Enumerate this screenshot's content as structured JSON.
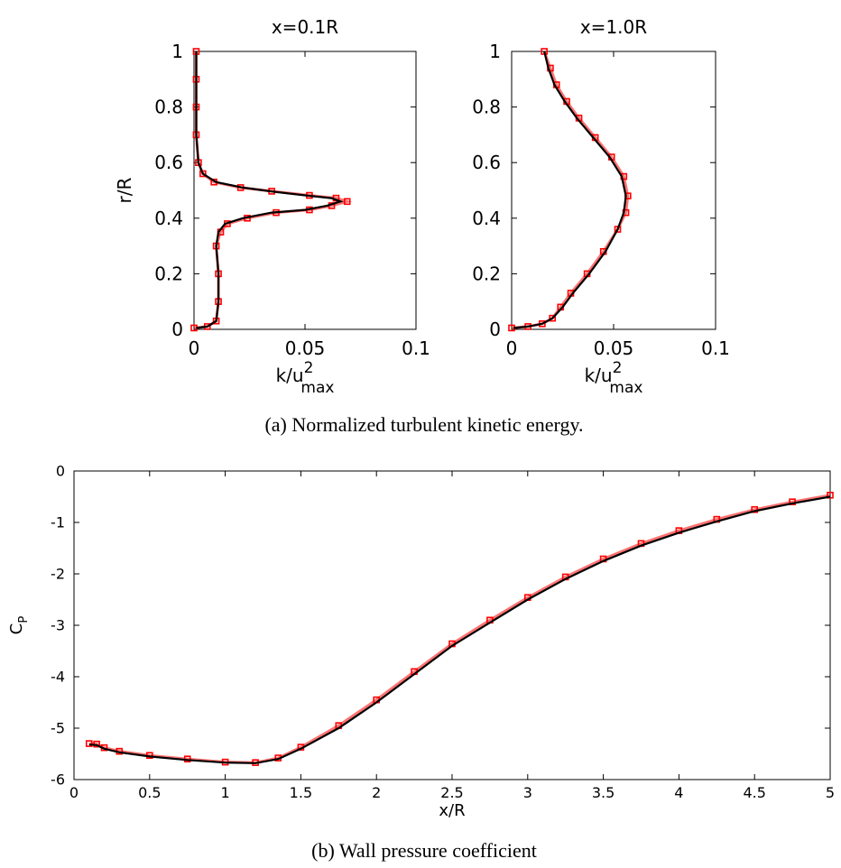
{
  "figure": {
    "caption_a": "(a) Normalized turbulent kinetic energy.",
    "caption_b": "(b) Wall pressure coefficient"
  },
  "colors": {
    "line": "#000000",
    "marker": "#ff0000"
  },
  "chart_data": [
    {
      "type": "line",
      "title": "x=0.1R",
      "xlabel": {
        "base": "k/u",
        "sup": "2",
        "sub": "max"
      },
      "ylabel": "r/R",
      "xlim": [
        0,
        0.1
      ],
      "ylim": [
        0,
        1
      ],
      "xticks": [
        "0",
        "0.05",
        "0.1"
      ],
      "yticks": [
        "0",
        "0.2",
        "0.4",
        "0.6",
        "0.8",
        "1"
      ],
      "grid": false,
      "series": [
        {
          "style": "line",
          "points": [
            [
              0.001,
              0.005
            ],
            [
              0.006,
              0.01
            ],
            [
              0.01,
              0.03
            ],
            [
              0.011,
              0.1
            ],
            [
              0.011,
              0.2
            ],
            [
              0.01,
              0.3
            ],
            [
              0.011,
              0.35
            ],
            [
              0.014,
              0.38
            ],
            [
              0.022,
              0.4
            ],
            [
              0.035,
              0.42
            ],
            [
              0.05,
              0.43
            ],
            [
              0.06,
              0.445
            ],
            [
              0.066,
              0.46
            ],
            [
              0.062,
              0.472
            ],
            [
              0.05,
              0.482
            ],
            [
              0.036,
              0.495
            ],
            [
              0.022,
              0.51
            ],
            [
              0.01,
              0.53
            ],
            [
              0.004,
              0.56
            ],
            [
              0.002,
              0.6
            ],
            [
              0.001,
              0.7
            ],
            [
              0.001,
              0.8
            ],
            [
              0.001,
              0.9
            ],
            [
              0.001,
              1.0
            ]
          ]
        },
        {
          "style": "markers",
          "points": [
            [
              0.0,
              0.005
            ],
            [
              0.006,
              0.01
            ],
            [
              0.01,
              0.03
            ],
            [
              0.011,
              0.1
            ],
            [
              0.011,
              0.2
            ],
            [
              0.01,
              0.3
            ],
            [
              0.012,
              0.35
            ],
            [
              0.015,
              0.38
            ],
            [
              0.024,
              0.4
            ],
            [
              0.037,
              0.42
            ],
            [
              0.052,
              0.43
            ],
            [
              0.062,
              0.445
            ],
            [
              0.069,
              0.46
            ],
            [
              0.064,
              0.472
            ],
            [
              0.052,
              0.482
            ],
            [
              0.035,
              0.497
            ],
            [
              0.021,
              0.51
            ],
            [
              0.009,
              0.53
            ],
            [
              0.004,
              0.56
            ],
            [
              0.002,
              0.6
            ],
            [
              0.001,
              0.7
            ],
            [
              0.001,
              0.8
            ],
            [
              0.001,
              0.9
            ],
            [
              0.001,
              1.0
            ]
          ]
        }
      ]
    },
    {
      "type": "line",
      "title": "x=1.0R",
      "xlabel": {
        "base": "k/u",
        "sup": "2",
        "sub": "max"
      },
      "ylabel": "",
      "xlim": [
        0,
        0.1
      ],
      "ylim": [
        0,
        1
      ],
      "xticks": [
        "0",
        "0.05",
        "0.1"
      ],
      "yticks": [
        "0",
        "0.2",
        "0.4",
        "0.6",
        "0.8",
        "1"
      ],
      "grid": false,
      "series": [
        {
          "style": "line",
          "points": [
            [
              0.001,
              0.005
            ],
            [
              0.008,
              0.01
            ],
            [
              0.015,
              0.02
            ],
            [
              0.02,
              0.04
            ],
            [
              0.025,
              0.08
            ],
            [
              0.03,
              0.13
            ],
            [
              0.038,
              0.2
            ],
            [
              0.046,
              0.28
            ],
            [
              0.052,
              0.36
            ],
            [
              0.055,
              0.42
            ],
            [
              0.056,
              0.48
            ],
            [
              0.054,
              0.55
            ],
            [
              0.048,
              0.62
            ],
            [
              0.04,
              0.69
            ],
            [
              0.032,
              0.76
            ],
            [
              0.026,
              0.82
            ],
            [
              0.021,
              0.88
            ],
            [
              0.018,
              0.94
            ],
            [
              0.016,
              1.0
            ]
          ]
        },
        {
          "style": "markers",
          "points": [
            [
              0.0,
              0.005
            ],
            [
              0.008,
              0.01
            ],
            [
              0.015,
              0.02
            ],
            [
              0.02,
              0.04
            ],
            [
              0.024,
              0.08
            ],
            [
              0.029,
              0.13
            ],
            [
              0.037,
              0.2
            ],
            [
              0.045,
              0.28
            ],
            [
              0.052,
              0.36
            ],
            [
              0.056,
              0.42
            ],
            [
              0.057,
              0.48
            ],
            [
              0.055,
              0.55
            ],
            [
              0.049,
              0.62
            ],
            [
              0.041,
              0.69
            ],
            [
              0.033,
              0.76
            ],
            [
              0.027,
              0.82
            ],
            [
              0.022,
              0.88
            ],
            [
              0.019,
              0.94
            ],
            [
              0.016,
              1.0
            ]
          ]
        }
      ]
    },
    {
      "type": "line",
      "title": "",
      "xlabel": "x/R",
      "ylabel": {
        "base": "C",
        "sub": "P"
      },
      "xlim": [
        0,
        5
      ],
      "ylim": [
        -6,
        0
      ],
      "xticks": [
        "0",
        "0.5",
        "1",
        "1.5",
        "2",
        "2.5",
        "3",
        "3.5",
        "4",
        "4.5",
        "5"
      ],
      "yticks": [
        "-6",
        "-5",
        "-4",
        "-3",
        "-2",
        "-1",
        "0"
      ],
      "grid": false,
      "series": [
        {
          "style": "line",
          "points": [
            [
              0.1,
              -5.32
            ],
            [
              0.15,
              -5.33
            ],
            [
              0.2,
              -5.4
            ],
            [
              0.3,
              -5.47
            ],
            [
              0.5,
              -5.55
            ],
            [
              0.75,
              -5.62
            ],
            [
              1.0,
              -5.67
            ],
            [
              1.2,
              -5.68
            ],
            [
              1.35,
              -5.6
            ],
            [
              1.5,
              -5.4
            ],
            [
              1.75,
              -5.0
            ],
            [
              2.0,
              -4.5
            ],
            [
              2.25,
              -3.95
            ],
            [
              2.5,
              -3.4
            ],
            [
              2.75,
              -2.95
            ],
            [
              3.0,
              -2.5
            ],
            [
              3.25,
              -2.1
            ],
            [
              3.5,
              -1.75
            ],
            [
              3.75,
              -1.45
            ],
            [
              4.0,
              -1.2
            ],
            [
              4.25,
              -0.98
            ],
            [
              4.5,
              -0.78
            ],
            [
              4.75,
              -0.63
            ],
            [
              5.0,
              -0.5
            ]
          ]
        },
        {
          "style": "markers",
          "points": [
            [
              0.1,
              -5.3
            ],
            [
              0.15,
              -5.31
            ],
            [
              0.2,
              -5.38
            ],
            [
              0.3,
              -5.45
            ],
            [
              0.5,
              -5.53
            ],
            [
              0.75,
              -5.6
            ],
            [
              1.0,
              -5.66
            ],
            [
              1.2,
              -5.67
            ],
            [
              1.35,
              -5.58
            ],
            [
              1.5,
              -5.37
            ],
            [
              1.75,
              -4.95
            ],
            [
              2.0,
              -4.45
            ],
            [
              2.25,
              -3.9
            ],
            [
              2.5,
              -3.36
            ],
            [
              2.75,
              -2.9
            ],
            [
              3.0,
              -2.46
            ],
            [
              3.25,
              -2.06
            ],
            [
              3.5,
              -1.71
            ],
            [
              3.75,
              -1.41
            ],
            [
              4.0,
              -1.16
            ],
            [
              4.25,
              -0.94
            ],
            [
              4.5,
              -0.75
            ],
            [
              4.75,
              -0.6
            ],
            [
              5.0,
              -0.47
            ]
          ]
        }
      ]
    }
  ]
}
